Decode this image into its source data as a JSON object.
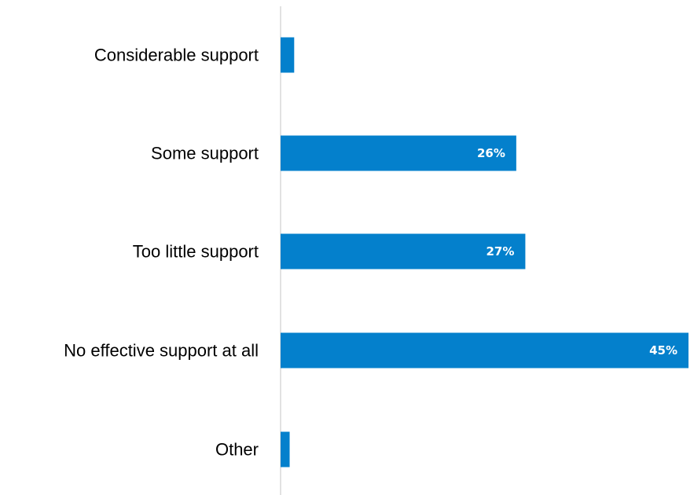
{
  "chart_data": {
    "type": "bar",
    "orientation": "horizontal",
    "categories": [
      "Considerable support",
      "Some support",
      "Too little support",
      "No effective support at all",
      "Other"
    ],
    "values": [
      1.5,
      26,
      27,
      45,
      1
    ],
    "value_labels": [
      "",
      "26%",
      "27%",
      "45%",
      ""
    ],
    "xlim": [
      0,
      45
    ],
    "bar_color": "#0480CC",
    "axis_color": "#D9D9D9",
    "title": "",
    "xlabel": "",
    "ylabel": "",
    "grid": false,
    "legend": "none"
  }
}
